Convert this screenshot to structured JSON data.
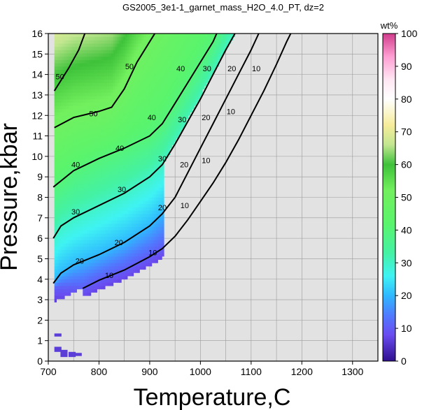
{
  "chart_data": {
    "type": "heatmap",
    "title": "GS2005_3e1-1_garnet_mass_H2O_4.0_PT, dz=2",
    "xlabel": "Temperature,C",
    "ylabel": "Pressure,kbar",
    "xlim": [
      700,
      1350
    ],
    "ylim": [
      0,
      16
    ],
    "x_ticks": [
      700,
      800,
      900,
      1000,
      1100,
      1200,
      1300
    ],
    "y_ticks": [
      0,
      1,
      2,
      3,
      4,
      5,
      6,
      7,
      8,
      9,
      10,
      11,
      12,
      13,
      14,
      15,
      16
    ],
    "grid": true,
    "background_color": "#e2e2e2",
    "colorbar": {
      "label": "wt%",
      "range": [
        0,
        100
      ],
      "ticks": [
        0,
        10,
        20,
        30,
        40,
        50,
        60,
        70,
        80,
        90,
        100
      ],
      "colors": [
        {
          "v": 0,
          "c": "#2f0f8f"
        },
        {
          "v": 8,
          "c": "#6a4cf0"
        },
        {
          "v": 14,
          "c": "#4f7bff"
        },
        {
          "v": 20,
          "c": "#2fb8ff"
        },
        {
          "v": 26,
          "c": "#3ff3f3"
        },
        {
          "v": 33,
          "c": "#44f2a4"
        },
        {
          "v": 42,
          "c": "#5af46c"
        },
        {
          "v": 52,
          "c": "#73f05e"
        },
        {
          "v": 60,
          "c": "#3ec23a"
        },
        {
          "v": 66,
          "c": "#c2e690"
        },
        {
          "v": 72,
          "c": "#f6ec9a"
        },
        {
          "v": 80,
          "c": "#ffffff"
        },
        {
          "v": 86,
          "c": "#ffe6f2"
        },
        {
          "v": 93,
          "c": "#ff9ed2"
        },
        {
          "v": 100,
          "c": "#d03c8c"
        }
      ]
    },
    "contours": [
      {
        "level": 10,
        "points": [
          [
            768,
            3.55
          ],
          [
            800,
            3.95
          ],
          [
            850,
            4.45
          ],
          [
            900,
            5.1
          ],
          [
            925,
            5.5
          ],
          [
            950,
            6.1
          ],
          [
            975,
            6.9
          ],
          [
            1000,
            7.8
          ],
          [
            1025,
            8.7
          ],
          [
            1050,
            9.7
          ],
          [
            1075,
            10.8
          ],
          [
            1100,
            12.0
          ],
          [
            1125,
            13.2
          ],
          [
            1150,
            14.5
          ],
          [
            1170,
            15.6
          ],
          [
            1178,
            16
          ]
        ]
      },
      {
        "level": 20,
        "points": [
          [
            710,
            3.8
          ],
          [
            725,
            4.3
          ],
          [
            750,
            4.7
          ],
          [
            800,
            5.2
          ],
          [
            850,
            5.8
          ],
          [
            900,
            6.6
          ],
          [
            925,
            7.2
          ],
          [
            950,
            8.0
          ],
          [
            975,
            9.2
          ],
          [
            1000,
            10.4
          ],
          [
            1025,
            11.6
          ],
          [
            1050,
            12.8
          ],
          [
            1075,
            14.0
          ],
          [
            1100,
            15.2
          ],
          [
            1115,
            16
          ]
        ]
      },
      {
        "level": 30,
        "points": [
          [
            710,
            6.0
          ],
          [
            725,
            6.6
          ],
          [
            750,
            7.0
          ],
          [
            800,
            7.6
          ],
          [
            850,
            8.2
          ],
          [
            900,
            9.0
          ],
          [
            925,
            9.6
          ],
          [
            950,
            10.6
          ],
          [
            975,
            11.7
          ],
          [
            1000,
            12.8
          ],
          [
            1025,
            14.0
          ],
          [
            1050,
            15.2
          ],
          [
            1068,
            16
          ]
        ]
      },
      {
        "level": 40,
        "points": [
          [
            710,
            8.5
          ],
          [
            750,
            9.3
          ],
          [
            800,
            9.9
          ],
          [
            850,
            10.4
          ],
          [
            900,
            11.0
          ],
          [
            925,
            11.6
          ],
          [
            950,
            12.6
          ],
          [
            975,
            13.6
          ],
          [
            1000,
            14.6
          ],
          [
            1025,
            15.6
          ],
          [
            1032,
            16
          ]
        ]
      },
      {
        "level": 50,
        "points": [
          [
            712,
            11.4
          ],
          [
            750,
            11.9
          ],
          [
            800,
            12.2
          ],
          [
            825,
            12.4
          ],
          [
            850,
            13.3
          ],
          [
            875,
            14.6
          ],
          [
            900,
            15.6
          ],
          [
            910,
            16
          ]
        ]
      },
      {
        "level": 50,
        "points": [
          [
            712,
            13.2
          ],
          [
            740,
            14.3
          ],
          [
            760,
            15.2
          ],
          [
            772,
            16
          ]
        ]
      }
    ],
    "contour_labels": [
      {
        "text": "10",
        "x": 820,
        "y": 4.2
      },
      {
        "text": "10",
        "x": 906,
        "y": 5.3
      },
      {
        "text": "10",
        "x": 969,
        "y": 7.6
      },
      {
        "text": "10",
        "x": 1011,
        "y": 9.8
      },
      {
        "text": "10",
        "x": 1060,
        "y": 12.2
      },
      {
        "text": "10",
        "x": 1110,
        "y": 14.3
      },
      {
        "text": "20",
        "x": 762,
        "y": 4.9
      },
      {
        "text": "20",
        "x": 839,
        "y": 5.8
      },
      {
        "text": "20",
        "x": 925,
        "y": 7.5
      },
      {
        "text": "20",
        "x": 968,
        "y": 9.6
      },
      {
        "text": "20",
        "x": 1011,
        "y": 11.9
      },
      {
        "text": "20",
        "x": 1062,
        "y": 14.3
      },
      {
        "text": "30",
        "x": 754,
        "y": 7.3
      },
      {
        "text": "30",
        "x": 845,
        "y": 8.4
      },
      {
        "text": "30",
        "x": 925,
        "y": 9.9
      },
      {
        "text": "30",
        "x": 964,
        "y": 11.8
      },
      {
        "text": "30",
        "x": 1013,
        "y": 14.3
      },
      {
        "text": "40",
        "x": 754,
        "y": 9.6
      },
      {
        "text": "40",
        "x": 841,
        "y": 10.4
      },
      {
        "text": "40",
        "x": 904,
        "y": 11.9
      },
      {
        "text": "40",
        "x": 961,
        "y": 14.3
      },
      {
        "text": "50",
        "x": 789,
        "y": 12.1
      },
      {
        "text": "50",
        "x": 723,
        "y": 13.9
      },
      {
        "text": "50",
        "x": 860,
        "y": 14.4
      }
    ]
  }
}
